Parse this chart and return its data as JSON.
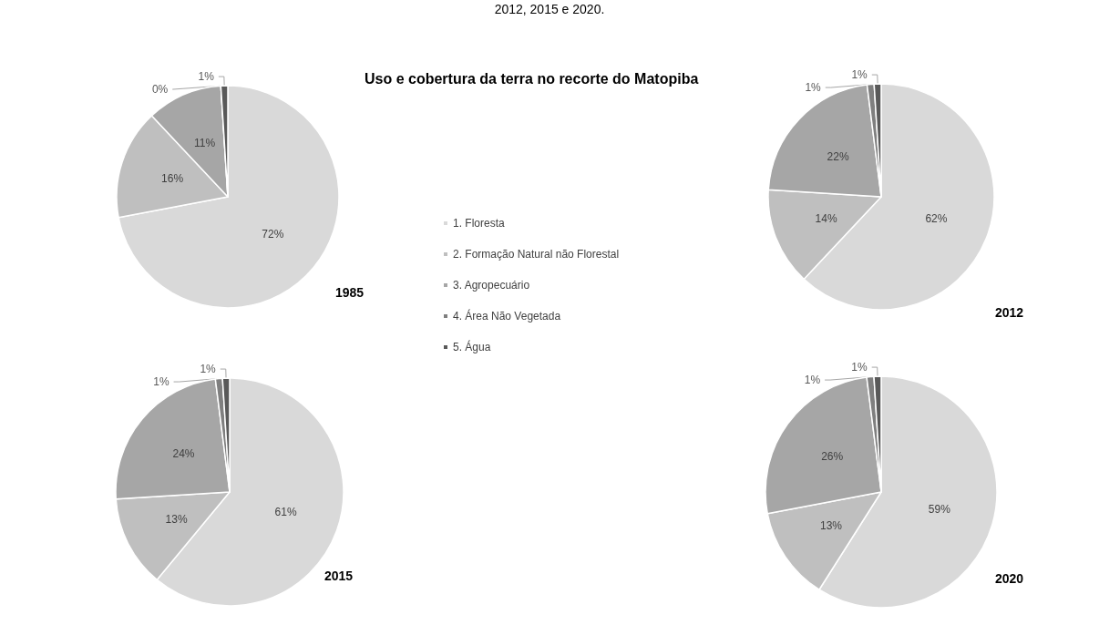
{
  "chart_data": [
    {
      "type": "pie",
      "title": "1985",
      "subtitle": "Uso e cobertura da terra no recorte do Matopiba",
      "annotations": [
        "2012, 2015 e 2020."
      ],
      "categories": [
        "1. Floresta",
        "2. Formação Natural não Florestal",
        "3. Agropecuário",
        "4. Área Não Vegetada",
        "5. Água"
      ],
      "values": [
        72,
        16,
        11,
        0,
        1
      ],
      "value_labels": [
        "72%",
        "16%",
        "11%",
        "0%",
        "1%"
      ],
      "colors": [
        "#d9d9d9",
        "#bfbfbf",
        "#a6a6a6",
        "#7f7f7f",
        "#595959"
      ],
      "legend": "right"
    },
    {
      "type": "pie",
      "title": "2012",
      "categories": [
        null,
        null,
        null,
        null,
        null
      ],
      "values": [
        62,
        14,
        22,
        1,
        1
      ],
      "value_labels": [
        "62%",
        "14%",
        "22%",
        "1%",
        "1%"
      ],
      "colors": [
        "#d9d9d9",
        "#bfbfbf",
        "#a6a6a6",
        "#7f7f7f",
        "#595959"
      ]
    },
    {
      "type": "pie",
      "title": "2015",
      "categories": [
        null,
        null,
        null,
        null,
        null
      ],
      "values": [
        61,
        13,
        24,
        1,
        1
      ],
      "value_labels": [
        "61%",
        "13%",
        "24%",
        "1%",
        "1%"
      ],
      "colors": [
        "#d9d9d9",
        "#bfbfbf",
        "#a6a6a6",
        "#7f7f7f",
        "#595959"
      ]
    },
    {
      "type": "pie",
      "title": "2020",
      "categories": [
        null,
        null,
        null,
        null,
        null
      ],
      "values": [
        59,
        13,
        26,
        1,
        1
      ],
      "value_labels": [
        "59%",
        "13%",
        "26%",
        "1%",
        "1%"
      ],
      "colors": [
        "#d9d9d9",
        "#bfbfbf",
        "#a6a6a6",
        "#7f7f7f",
        "#595959"
      ]
    }
  ]
}
